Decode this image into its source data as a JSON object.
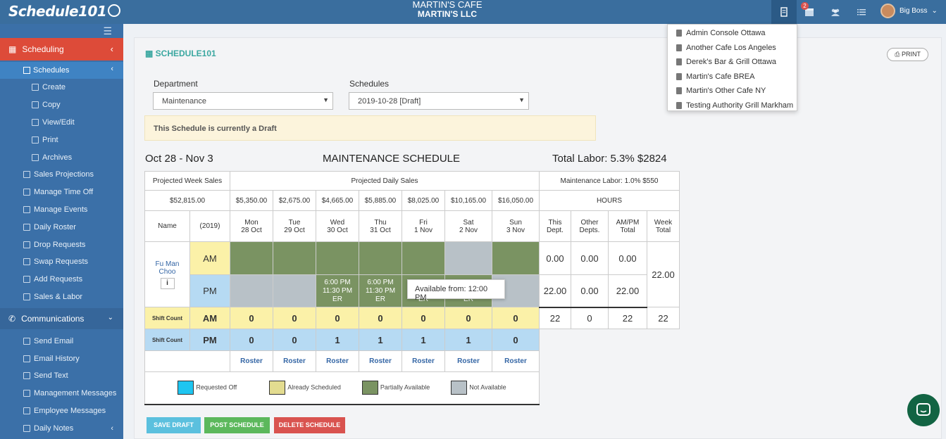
{
  "app": {
    "logo": "Schedule101"
  },
  "company": {
    "name": "MARTIN'S CAFE",
    "llc": "MARTIN'S LLC"
  },
  "topbar": {
    "notif_count": "2",
    "user_name": "Big Boss"
  },
  "locations": [
    "Admin Console Ottawa",
    "Another Cafe Los Angeles",
    "Derek's Bar & Grill Ottawa",
    "Martin's Cafe BREA",
    "Martin's Other Cafe NY",
    "Testing Authority Grill Markham"
  ],
  "sidebar": {
    "scheduling": "Scheduling",
    "schedules": "Schedules",
    "schedule_items": [
      "Create",
      "Copy",
      "View/Edit",
      "Print",
      "Archives"
    ],
    "items": [
      "Sales Projections",
      "Manage Time Off",
      "Manage Events",
      "Daily Roster",
      "Drop Requests",
      "Swap Requests",
      "Add Requests",
      "Sales & Labor"
    ],
    "communications": "Communications",
    "comm_items": [
      "Send Email",
      "Email History",
      "Send Text",
      "Management Messages",
      "Employee Messages",
      "Daily Notes"
    ]
  },
  "page": {
    "title": "SCHEDULE101",
    "print": "PRINT",
    "department_label": "Department",
    "department_value": "Maintenance",
    "schedules_label": "Schedules",
    "schedules_value": "2019-10-28 [Draft]",
    "draft_message": "This Schedule is currently a Draft"
  },
  "schedule": {
    "date_range": "Oct 28 - Nov 3",
    "title": "MAINTENANCE SCHEDULE",
    "total_labor": "Total Labor: 5.3%  $2824",
    "projected_week_label": "Projected Week Sales",
    "projected_week_value": "$52,815.00",
    "projected_daily_label": "Projected Daily Sales",
    "daily_sales": [
      "$5,350.00",
      "$2,675.00",
      "$4,665.00",
      "$5,885.00",
      "$8,025.00",
      "$10,165.00",
      "$16,050.00"
    ],
    "maintenance_labor": "Maintenance Labor: 1.0%  $550",
    "hours_label": "HOURS",
    "name_col": "Name",
    "year_col": "(2019)",
    "days": [
      {
        "d": "Mon",
        "date": "28 Oct"
      },
      {
        "d": "Tue",
        "date": "29 Oct"
      },
      {
        "d": "Wed",
        "date": "30 Oct"
      },
      {
        "d": "Thu",
        "date": "31 Oct"
      },
      {
        "d": "Fri",
        "date": "1 Nov"
      },
      {
        "d": "Sat",
        "date": "2 Nov"
      },
      {
        "d": "Sun",
        "date": "3 Nov"
      }
    ],
    "hour_cols": [
      {
        "a": "This",
        "b": "Dept."
      },
      {
        "a": "Other",
        "b": "Depts."
      },
      {
        "a": "AM/PM",
        "b": "Total"
      },
      {
        "a": "Week",
        "b": "Total"
      }
    ],
    "employee": {
      "first": "Fu Man",
      "last": "Choo",
      "info": "i"
    },
    "am": "AM",
    "pm": "PM",
    "shift": {
      "time1": "6:00 PM",
      "time2": "11:30 PM",
      "code": "ER"
    },
    "am_hours": [
      "0.00",
      "0.00",
      "0.00"
    ],
    "pm_hours": [
      "22.00",
      "0.00",
      "22.00"
    ],
    "week_total": "22.00",
    "shift_count_label": "Shift Count",
    "am_counts": [
      "0",
      "0",
      "0",
      "0",
      "0",
      "0",
      "0"
    ],
    "pm_counts": [
      "0",
      "0",
      "1",
      "1",
      "1",
      "1",
      "0"
    ],
    "count_totals": [
      "22",
      "0",
      "22",
      "22"
    ],
    "roster": "Roster",
    "legend": [
      "Requested Off",
      "Already Scheduled",
      "Partially Available",
      "Not Available"
    ]
  },
  "tooltip": "Available from: 12:00 PM",
  "buttons": {
    "save": "SAVE DRAFT",
    "post": "POST SCHEDULE",
    "delete": "DELETE SCHEDULE"
  },
  "colors": {
    "topbar": "#3a6e9e",
    "sidebar": "#3b70a8",
    "active_nav": "#dd4b39",
    "partially_available": "#7a9362",
    "not_available": "#b8c1c7",
    "already_scheduled": "#fbf1a8",
    "requested_off": "#1ec5f0"
  }
}
